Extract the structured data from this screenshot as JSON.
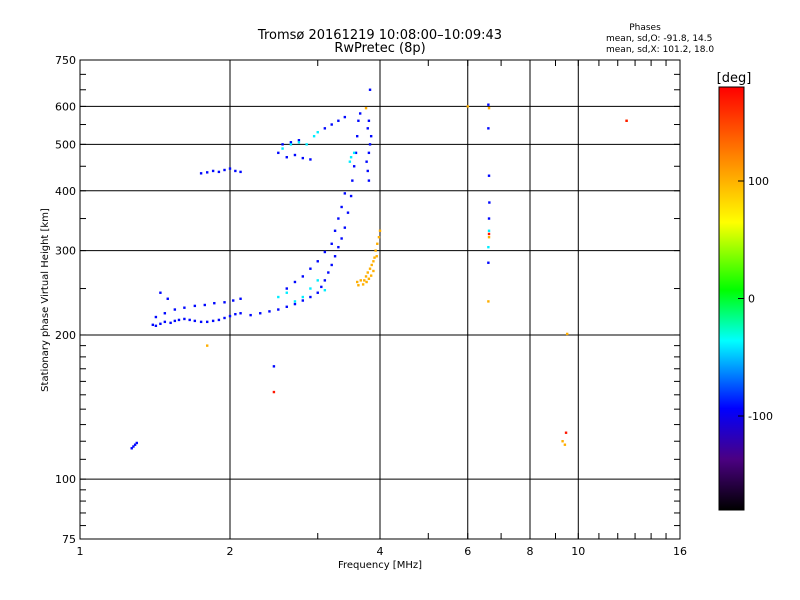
{
  "header": {
    "title_line1": "Tromsø 20161219 10:08:00–10:09:43",
    "title_line2": "RwPretec (8p)",
    "stats_title": "Phases",
    "stats_line1": "mean, sd,O: -91.8, 14.5",
    "stats_line2": "mean, sd,X: 101.2, 18.0"
  },
  "colorbar": {
    "label": "[deg]",
    "ticks": [
      "100",
      "0",
      "-100"
    ]
  },
  "chart_data": {
    "type": "scatter",
    "xlabel": "Frequency [MHz]",
    "ylabel": "Stationary phase Virtual Height [km]",
    "xscale": "log",
    "yscale": "log",
    "xlim": [
      1,
      16
    ],
    "ylim": [
      75,
      750
    ],
    "x_ticks": [
      1,
      2,
      4,
      6,
      8,
      10,
      16
    ],
    "x_tick_labels": [
      "1",
      "2",
      "4",
      "6",
      "8",
      "10",
      "16"
    ],
    "y_ticks": [
      75,
      100,
      200,
      300,
      400,
      500,
      600,
      750
    ],
    "y_tick_labels": [
      "75",
      "100",
      "200",
      "300",
      "400",
      "500",
      "600",
      "750"
    ],
    "grid_x": [
      2,
      4,
      6,
      8,
      10
    ],
    "grid_y": [
      100,
      200,
      300,
      400,
      500,
      600
    ],
    "series": [
      {
        "polarization": "O",
        "color_value_deg": -92,
        "points": [
          [
            1.28,
            117
          ],
          [
            1.29,
            118
          ],
          [
            1.3,
            119
          ],
          [
            1.27,
            116
          ],
          [
            1.4,
            210
          ],
          [
            1.42,
            209
          ],
          [
            1.45,
            211
          ],
          [
            1.48,
            213
          ],
          [
            1.52,
            212
          ],
          [
            1.55,
            214
          ],
          [
            1.58,
            215
          ],
          [
            1.62,
            216
          ],
          [
            1.66,
            215
          ],
          [
            1.7,
            214
          ],
          [
            1.75,
            213
          ],
          [
            1.8,
            213
          ],
          [
            1.85,
            214
          ],
          [
            1.9,
            215
          ],
          [
            1.95,
            217
          ],
          [
            2.0,
            219
          ],
          [
            2.05,
            221
          ],
          [
            2.1,
            222
          ],
          [
            1.42,
            218
          ],
          [
            1.48,
            222
          ],
          [
            1.55,
            226
          ],
          [
            1.62,
            228
          ],
          [
            1.7,
            230
          ],
          [
            1.78,
            231
          ],
          [
            1.86,
            233
          ],
          [
            1.95,
            234
          ],
          [
            2.03,
            236
          ],
          [
            2.1,
            238
          ],
          [
            1.45,
            245
          ],
          [
            1.5,
            238
          ],
          [
            2.2,
            220
          ],
          [
            2.3,
            222
          ],
          [
            2.4,
            224
          ],
          [
            2.5,
            226
          ],
          [
            2.6,
            229
          ],
          [
            2.7,
            232
          ],
          [
            2.8,
            236
          ],
          [
            2.9,
            240
          ],
          [
            3.0,
            245
          ],
          [
            3.05,
            252
          ],
          [
            3.1,
            260
          ],
          [
            3.15,
            270
          ],
          [
            3.2,
            280
          ],
          [
            3.25,
            292
          ],
          [
            3.3,
            305
          ],
          [
            3.35,
            318
          ],
          [
            3.4,
            335
          ],
          [
            3.45,
            360
          ],
          [
            3.5,
            390
          ],
          [
            3.52,
            420
          ],
          [
            3.55,
            450
          ],
          [
            3.58,
            480
          ],
          [
            3.6,
            520
          ],
          [
            3.62,
            560
          ],
          [
            3.65,
            580
          ],
          [
            2.6,
            250
          ],
          [
            2.7,
            258
          ],
          [
            2.8,
            265
          ],
          [
            2.9,
            275
          ],
          [
            3.0,
            285
          ],
          [
            3.1,
            298
          ],
          [
            3.2,
            310
          ],
          [
            3.25,
            330
          ],
          [
            3.3,
            350
          ],
          [
            3.35,
            370
          ],
          [
            3.4,
            395
          ],
          [
            3.8,
            420
          ],
          [
            3.78,
            440
          ],
          [
            3.76,
            460
          ],
          [
            3.8,
            480
          ],
          [
            3.82,
            500
          ],
          [
            3.84,
            520
          ],
          [
            3.78,
            540
          ],
          [
            3.8,
            560
          ],
          [
            3.82,
            650
          ],
          [
            1.75,
            435
          ],
          [
            1.8,
            437
          ],
          [
            1.85,
            440
          ],
          [
            1.9,
            438
          ],
          [
            1.95,
            442
          ],
          [
            2.0,
            445
          ],
          [
            2.05,
            440
          ],
          [
            2.1,
            438
          ],
          [
            2.5,
            480
          ],
          [
            2.6,
            470
          ],
          [
            2.7,
            475
          ],
          [
            2.8,
            468
          ],
          [
            2.9,
            465
          ],
          [
            2.55,
            500
          ],
          [
            2.65,
            505
          ],
          [
            2.75,
            510
          ],
          [
            3.1,
            540
          ],
          [
            3.2,
            550
          ],
          [
            3.3,
            560
          ],
          [
            3.4,
            570
          ],
          [
            2.45,
            172
          ],
          [
            6.6,
            605
          ],
          [
            6.6,
            540
          ],
          [
            6.62,
            430
          ],
          [
            6.63,
            378
          ],
          [
            6.6,
            283
          ],
          [
            6.62,
            350
          ]
        ]
      },
      {
        "polarization": "X",
        "color_value_deg": 101,
        "points": [
          [
            3.7,
            255
          ],
          [
            3.72,
            260
          ],
          [
            3.75,
            265
          ],
          [
            3.78,
            270
          ],
          [
            3.8,
            262
          ],
          [
            3.82,
            275
          ],
          [
            3.85,
            280
          ],
          [
            3.88,
            285
          ],
          [
            3.9,
            290
          ],
          [
            3.92,
            300
          ],
          [
            3.95,
            310
          ],
          [
            3.98,
            320
          ],
          [
            4.0,
            330
          ],
          [
            3.76,
            258
          ],
          [
            3.84,
            266
          ],
          [
            3.88,
            272
          ],
          [
            3.94,
            292
          ],
          [
            3.66,
            260
          ],
          [
            3.62,
            254
          ],
          [
            3.6,
            258
          ],
          [
            3.75,
            595
          ],
          [
            6.62,
            595
          ],
          [
            6.62,
            320
          ],
          [
            6.6,
            235
          ],
          [
            9.3,
            120
          ],
          [
            9.4,
            118
          ],
          [
            9.5,
            201
          ],
          [
            1.8,
            190
          ],
          [
            12.5,
            560
          ],
          [
            6.0,
            600
          ]
        ]
      },
      {
        "polarization": "cyan",
        "color_value_deg": -40,
        "points": [
          [
            2.8,
            240
          ],
          [
            2.9,
            250
          ],
          [
            3.0,
            260
          ],
          [
            2.7,
            235
          ],
          [
            3.1,
            248
          ],
          [
            2.5,
            240
          ],
          [
            2.6,
            245
          ],
          [
            3.5,
            470
          ],
          [
            3.55,
            480
          ],
          [
            3.48,
            460
          ],
          [
            2.55,
            490
          ],
          [
            2.65,
            500
          ],
          [
            2.75,
            505
          ],
          [
            2.85,
            500
          ],
          [
            2.95,
            520
          ],
          [
            3.0,
            530
          ],
          [
            6.62,
            330
          ],
          [
            6.6,
            305
          ]
        ]
      },
      {
        "polarization": "red",
        "color_value_deg": 170,
        "points": [
          [
            2.45,
            152
          ],
          [
            6.62,
            325
          ],
          [
            12.5,
            560
          ],
          [
            9.45,
            125
          ]
        ]
      }
    ]
  }
}
